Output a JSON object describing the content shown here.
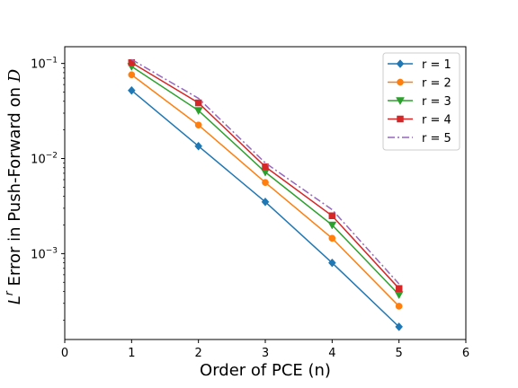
{
  "chart_data": {
    "type": "line",
    "title": "",
    "xlabel": "Order of PCE (n)",
    "ylabel_main": "L",
    "ylabel_sup": "r",
    "ylabel_rest": " Error in Push-Forward on ",
    "ylabel_script": "D",
    "x": [
      1,
      2,
      3,
      4,
      5
    ],
    "xlim": [
      0,
      6
    ],
    "x_ticks": [
      "0",
      "1",
      "2",
      "3",
      "4",
      "5",
      "6"
    ],
    "ylim": [
      0.000125,
      0.15
    ],
    "y_scale": "log",
    "y_ticks": [
      {
        "value": 0.1,
        "base": "10",
        "exp": "−1"
      },
      {
        "value": 0.01,
        "base": "10",
        "exp": "−2"
      },
      {
        "value": 0.001,
        "base": "10",
        "exp": "−3"
      }
    ],
    "grid": false,
    "legend_position": "top-right",
    "series": [
      {
        "name": "r = 1",
        "color": "#1f77b4",
        "marker": "diamond",
        "line": "solid",
        "values": [
          0.052,
          0.0135,
          0.0035,
          0.0008,
          0.00017
        ]
      },
      {
        "name": "r = 2",
        "color": "#ff7f0e",
        "marker": "circle",
        "line": "solid",
        "values": [
          0.076,
          0.0225,
          0.0056,
          0.00145,
          0.00028
        ]
      },
      {
        "name": "r = 3",
        "color": "#2ca02c",
        "marker": "triangle-down",
        "line": "solid",
        "values": [
          0.093,
          0.032,
          0.0072,
          0.002,
          0.00037
        ]
      },
      {
        "name": "r = 4",
        "color": "#d62728",
        "marker": "square",
        "line": "solid",
        "values": [
          0.102,
          0.0385,
          0.0082,
          0.0025,
          0.00043
        ]
      },
      {
        "name": "r = 5",
        "color": "#9467bd",
        "marker": "none",
        "line": "dashdot",
        "values": [
          0.11,
          0.043,
          0.009,
          0.0029,
          0.00048
        ]
      }
    ]
  }
}
